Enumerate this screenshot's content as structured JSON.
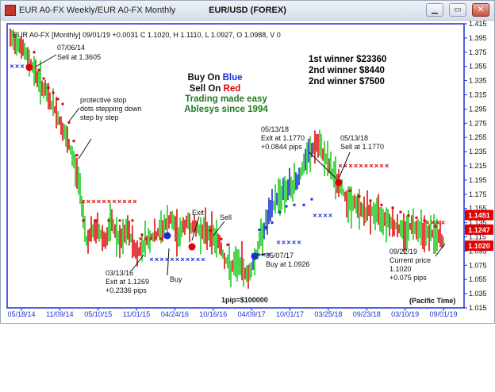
{
  "window": {
    "title": "EUR A0-FX Weekly/EUR A0-FX Monthly",
    "chart_title": "EUR/USD (FOREX)",
    "minimize_glyph": "▁",
    "maximize_glyph": "▭",
    "close_glyph": "✕"
  },
  "header": {
    "info_line": "EUR A0-FX [Monthly] 09/01/19 +0.0031 C 1.1020, H 1.1110, L 1.0927, O 1.0988, V 0"
  },
  "legend": {
    "line1_prefix": "Buy On ",
    "line1_word": "Blue",
    "line2_prefix": "Sell On ",
    "line2_word": "Red",
    "line3": "Trading made easy",
    "line4": "Ablesys since 1994"
  },
  "winners": [
    "1st winner $23360",
    "2nd winner $8440",
    "2nd winner $7500"
  ],
  "annotations": {
    "sell_2014": [
      "07/06/14",
      "Sell at 1.3605"
    ],
    "protective_stop": [
      "protective stop",
      "dots stepping down",
      "step by step"
    ],
    "exit_2016": [
      "03/13/16",
      "Exit at 1.1269",
      "+0.2336 pips"
    ],
    "buy_label": "Buy",
    "exit_label": "Exit",
    "sell_label": "Sell",
    "exit_2018": [
      "05/13/18",
      "Exit at 1.1770",
      "+0.0844 pips"
    ],
    "sell_2018": [
      "05/13/18",
      "Sell at 1.1770"
    ],
    "buy_2017": [
      "05/07/17",
      "Buy at 1.0926"
    ],
    "current": [
      "09/22/19",
      "Current price",
      "1.1020",
      "+0.075 pips"
    ],
    "pip_note": "1pip=$100000",
    "timezone": "(Pacific Time)"
  },
  "colors": {
    "up_bar": "#22cc22",
    "down_bar": "#dd1111",
    "buy_signal": "#1a2fd6",
    "sell_signal": "#e00000",
    "axis": "#1a2fd6",
    "winner_text": "#000000",
    "legend_blue": "#1a2fd6",
    "legend_red": "#e00000",
    "legend_green": "#1f7a1f"
  },
  "chart_data": {
    "type": "bar",
    "title": "EUR/USD (FOREX)",
    "x_tick_labels": [
      "05/18/14",
      "11/09/14",
      "05/10/15",
      "11/01/15",
      "04/24/16",
      "10/16/16",
      "04/09/17",
      "10/01/17",
      "03/25/18",
      "09/23/18",
      "03/10/19",
      "09/01/19"
    ],
    "y_ticks": [
      1.015,
      1.035,
      1.055,
      1.075,
      1.095,
      1.115,
      1.135,
      1.155,
      1.175,
      1.195,
      1.215,
      1.235,
      1.255,
      1.275,
      1.295,
      1.315,
      1.335,
      1.355,
      1.375,
      1.395,
      1.415
    ],
    "ylim": [
      1.015,
      1.415
    ],
    "price_tags": [
      {
        "value": 1.1451,
        "label": "1.1451"
      },
      {
        "value": 1.1247,
        "label": "1.1247"
      },
      {
        "value": 1.102,
        "label": "1.1020"
      }
    ],
    "signals": [
      {
        "date": "07/06/14",
        "type": "sell",
        "price": 1.3605
      },
      {
        "date": "03/13/16",
        "type": "exit",
        "price": 1.1269
      },
      {
        "date": "05/07/17",
        "type": "buy",
        "price": 1.0926
      },
      {
        "date": "05/13/18",
        "type": "exit",
        "price": 1.177
      },
      {
        "date": "05/13/18",
        "type": "sell",
        "price": 1.177
      }
    ]
  }
}
